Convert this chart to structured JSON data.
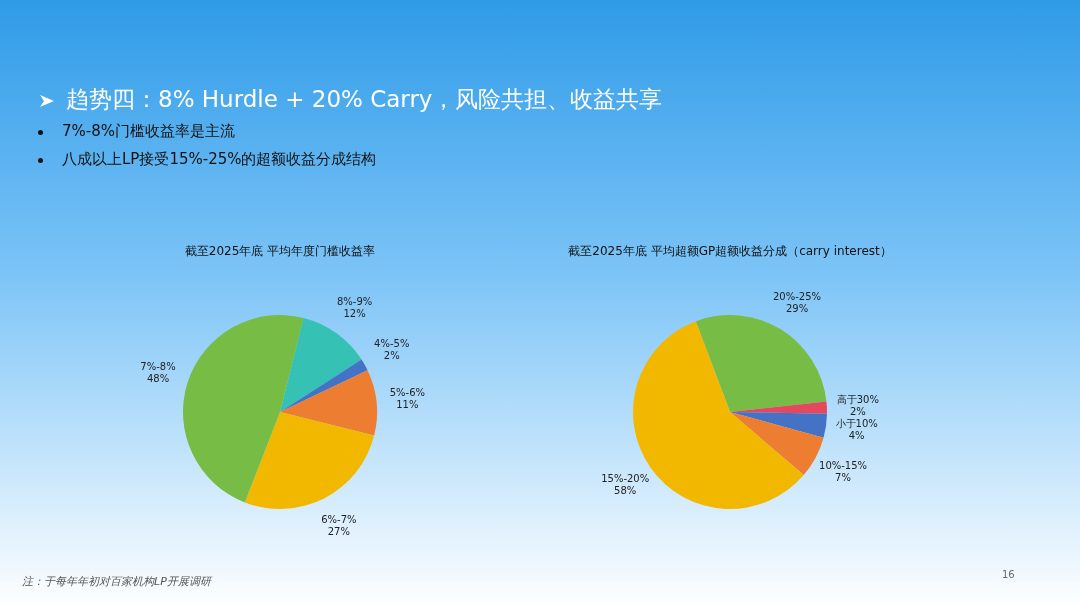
{
  "chart_data": [
    {
      "type": "other",
      "title": "趋势四：8% Hurdle + 20% Carry，风险共担、收益共享",
      "annotations": [
        "7%-8%门槛收益率是主流",
        "八成以上LP接受15%-25%的超额收益分成结构",
        "注：于每年年初对百家机构LP开展调研",
        "16"
      ]
    },
    {
      "type": "pie",
      "title": "截至2025年底 平均年度门槛收益率",
      "categories": [
        "8%-9%",
        "4%-5%",
        "5%-6%",
        "6%-7%",
        "7%-8%"
      ],
      "values": [
        12,
        2,
        11,
        27,
        48
      ],
      "colors": [
        "#35c1b4",
        "#4472c4",
        "#ed7d31",
        "#f2b800",
        "#77bc45"
      ],
      "value_labels": [
        "12%",
        "2%",
        "11%",
        "27%",
        "48%"
      ]
    },
    {
      "type": "pie",
      "title": "截至2025年底 平均超额GP超额收益分成（carry interest）",
      "categories": [
        "20%-25%",
        "高于30%",
        "小于10%",
        "10%-15%",
        "15%-20%"
      ],
      "values": [
        29,
        2,
        4,
        7,
        58
      ],
      "colors": [
        "#77bc45",
        "#e5475f",
        "#4472c4",
        "#ed7d31",
        "#f2b800"
      ],
      "value_labels": [
        "29%",
        "2%",
        "4%",
        "7%",
        "58%"
      ]
    }
  ]
}
